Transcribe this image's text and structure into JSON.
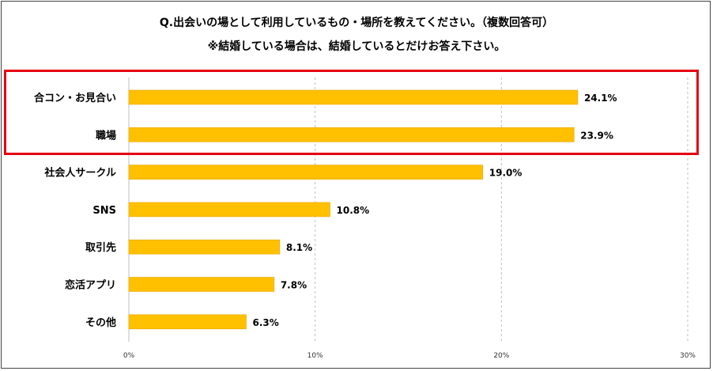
{
  "title_line1": "Q.出会いの場として利用しているもの・場所を教えてください。（複数回答可）",
  "title_line2": "※結婚している場合は、結婚しているとだけお答え下さい。",
  "colors": {
    "bar": "#ffc000",
    "highlight": "#e60012",
    "grid": "#bfbfbf"
  },
  "chart_data": {
    "type": "bar",
    "orientation": "horizontal",
    "categories": [
      "合コン・お見合い",
      "職場",
      "社会人サークル",
      "SNS",
      "取引先",
      "恋活アプリ",
      "その他"
    ],
    "values": [
      24.1,
      23.9,
      19.0,
      10.8,
      8.1,
      7.8,
      6.3
    ],
    "value_labels": [
      "24.1%",
      "23.9%",
      "19.0%",
      "10.8%",
      "8.1%",
      "7.8%",
      "6.3%"
    ],
    "xlim": [
      0,
      30
    ],
    "ticks": [
      0,
      10,
      20,
      30
    ],
    "tick_labels": [
      "0%",
      "10%",
      "20%",
      "30%"
    ],
    "grid": true,
    "highlighted_categories": [
      "合コン・お見合い",
      "職場"
    ]
  }
}
